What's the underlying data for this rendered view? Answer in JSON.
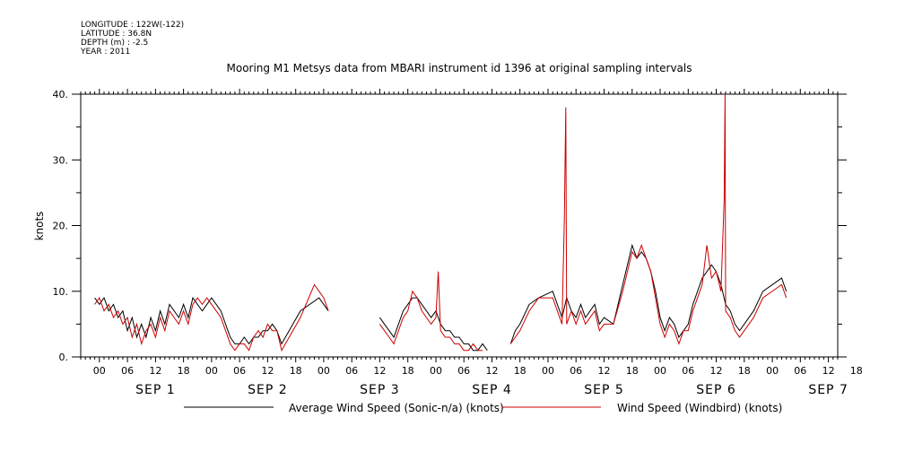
{
  "meta": {
    "lines": [
      "LONGITUDE : 122W(-122)",
      "LATITUDE : 36.8N",
      "DEPTH (m) : -2.5",
      "YEAR : 2011"
    ]
  },
  "chart_data": {
    "type": "line",
    "title": "Mooring M1 Metsys data from MBARI instrument id 1396 at original sampling intervals",
    "ylabel": "knots",
    "xlabel": "",
    "ylim": [
      0,
      40
    ],
    "xlim_hours": [
      -4,
      158
    ],
    "x_unit": "hours from 00 UTC SEP 1 2011",
    "y_ticks": [
      "0.",
      "10.",
      "20.",
      "30.",
      "40."
    ],
    "y_tick_values": [
      0,
      10,
      20,
      30,
      40
    ],
    "x_tick_labels": [
      "00",
      "06",
      "12",
      "18",
      "00",
      "06",
      "12",
      "18",
      "00",
      "06",
      "12",
      "18",
      "00",
      "06",
      "12",
      "18",
      "00",
      "06",
      "12",
      "18",
      "00",
      "06",
      "12",
      "18",
      "00",
      "06",
      "12",
      "18"
    ],
    "day_labels": [
      "SEP 1",
      "SEP 2",
      "SEP 3",
      "SEP 4",
      "SEP 5",
      "SEP 6",
      "SEP 7"
    ],
    "grid": false,
    "legend_position": "bottom",
    "series": [
      {
        "name": "Average Wind Speed (Sonic-n/a) (knots)",
        "color": "#000000",
        "segments": [
          [
            [
              -1,
              9
            ],
            [
              0,
              8
            ],
            [
              1,
              9
            ],
            [
              2,
              7
            ],
            [
              3,
              8
            ],
            [
              4,
              6
            ],
            [
              5,
              7
            ],
            [
              6,
              4
            ],
            [
              7,
              6
            ],
            [
              8,
              3
            ],
            [
              9,
              5
            ],
            [
              10,
              3
            ],
            [
              11,
              6
            ],
            [
              12,
              4
            ],
            [
              13,
              7
            ],
            [
              14,
              5
            ],
            [
              15,
              8
            ],
            [
              16,
              7
            ],
            [
              17,
              6
            ],
            [
              18,
              8
            ],
            [
              19,
              6
            ],
            [
              20,
              9
            ],
            [
              21,
              8
            ],
            [
              22,
              7
            ],
            [
              23,
              8
            ],
            [
              24,
              9
            ],
            [
              25,
              8
            ],
            [
              26,
              7
            ],
            [
              27,
              5
            ],
            [
              28,
              3
            ],
            [
              29,
              2
            ],
            [
              30,
              2
            ],
            [
              31,
              3
            ],
            [
              32,
              2
            ],
            [
              33,
              3
            ],
            [
              34,
              3
            ],
            [
              35,
              4
            ],
            [
              36,
              4
            ],
            [
              37,
              5
            ],
            [
              38,
              4
            ],
            [
              39,
              2
            ],
            [
              43,
              7
            ],
            [
              47,
              9
            ],
            [
              48,
              8
            ],
            [
              49,
              7
            ]
          ],
          [
            [
              60,
              6
            ],
            [
              61,
              5
            ],
            [
              62,
              4
            ],
            [
              63,
              3
            ],
            [
              64,
              5
            ],
            [
              65,
              7
            ],
            [
              66,
              8
            ],
            [
              67,
              9
            ],
            [
              68,
              9
            ],
            [
              69,
              8
            ],
            [
              70,
              7
            ],
            [
              71,
              6
            ],
            [
              72,
              7
            ],
            [
              73,
              5
            ],
            [
              74,
              4
            ],
            [
              75,
              4
            ],
            [
              76,
              3
            ],
            [
              77,
              3
            ],
            [
              78,
              2
            ],
            [
              79,
              2
            ],
            [
              80,
              1
            ],
            [
              81,
              1
            ],
            [
              82,
              2
            ],
            [
              83,
              1
            ]
          ],
          [
            [
              88,
              2
            ],
            [
              89,
              4
            ],
            [
              90,
              5
            ],
            [
              92,
              8
            ],
            [
              94,
              9
            ],
            [
              97,
              10
            ],
            [
              98,
              8
            ],
            [
              99,
              6
            ],
            [
              100,
              9
            ],
            [
              101,
              7
            ],
            [
              102,
              6
            ],
            [
              103,
              8
            ],
            [
              104,
              6
            ],
            [
              105,
              7
            ],
            [
              106,
              8
            ],
            [
              107,
              5
            ],
            [
              108,
              6
            ],
            [
              110,
              5
            ],
            [
              112,
              11
            ],
            [
              114,
              17
            ],
            [
              115,
              15
            ],
            [
              116,
              16
            ],
            [
              117,
              15
            ],
            [
              118,
              13
            ],
            [
              119,
              10
            ],
            [
              120,
              6
            ],
            [
              121,
              4
            ],
            [
              122,
              6
            ],
            [
              123,
              5
            ],
            [
              124,
              3
            ],
            [
              125,
              4
            ],
            [
              126,
              5
            ],
            [
              127,
              8
            ],
            [
              128,
              10
            ],
            [
              129,
              12
            ],
            [
              130,
              13
            ],
            [
              131,
              14
            ],
            [
              132,
              13
            ],
            [
              133,
              11
            ],
            [
              134,
              8
            ],
            [
              135,
              7
            ],
            [
              136,
              5
            ],
            [
              137,
              4
            ],
            [
              138,
              5
            ],
            [
              140,
              7
            ],
            [
              142,
              10
            ],
            [
              146,
              12
            ],
            [
              147,
              10
            ]
          ]
        ]
      },
      {
        "name": "Wind Speed (Windbird) (knots)",
        "color": "#cc0000",
        "segments": [
          [
            [
              -1,
              8
            ],
            [
              0,
              9
            ],
            [
              1,
              7
            ],
            [
              2,
              8
            ],
            [
              3,
              6
            ],
            [
              4,
              7
            ],
            [
              5,
              5
            ],
            [
              6,
              6
            ],
            [
              7,
              3
            ],
            [
              8,
              5
            ],
            [
              9,
              2
            ],
            [
              10,
              4
            ],
            [
              11,
              5
            ],
            [
              12,
              3
            ],
            [
              13,
              6
            ],
            [
              14,
              4
            ],
            [
              15,
              7
            ],
            [
              16,
              6
            ],
            [
              17,
              5
            ],
            [
              18,
              7
            ],
            [
              19,
              5
            ],
            [
              20,
              8
            ],
            [
              21,
              9
            ],
            [
              22,
              8
            ],
            [
              23,
              9
            ],
            [
              24,
              8
            ],
            [
              25,
              7
            ],
            [
              26,
              6
            ],
            [
              27,
              4
            ],
            [
              28,
              2
            ],
            [
              29,
              1
            ],
            [
              30,
              2
            ],
            [
              31,
              2
            ],
            [
              32,
              1
            ],
            [
              33,
              3
            ],
            [
              34,
              4
            ],
            [
              35,
              3
            ],
            [
              36,
              5
            ],
            [
              37,
              4
            ],
            [
              38,
              4
            ],
            [
              39,
              1
            ],
            [
              43,
              6
            ],
            [
              46,
              11
            ],
            [
              47,
              10
            ],
            [
              48,
              9
            ],
            [
              49,
              7
            ]
          ],
          [
            [
              60,
              5
            ],
            [
              61,
              4
            ],
            [
              62,
              3
            ],
            [
              63,
              2
            ],
            [
              64,
              4
            ],
            [
              65,
              6
            ],
            [
              66,
              7
            ],
            [
              67,
              10
            ],
            [
              68,
              9
            ],
            [
              69,
              7
            ],
            [
              70,
              6
            ],
            [
              71,
              5
            ],
            [
              72,
              6
            ],
            [
              72.5,
              13
            ],
            [
              73,
              4
            ],
            [
              74,
              3
            ],
            [
              75,
              3
            ],
            [
              76,
              2
            ],
            [
              77,
              2
            ],
            [
              78,
              1
            ],
            [
              79,
              1
            ],
            [
              80,
              2
            ],
            [
              81,
              1
            ],
            [
              82,
              1
            ]
          ],
          [
            [
              88,
              2
            ],
            [
              89,
              3
            ],
            [
              90,
              4
            ],
            [
              92,
              7
            ],
            [
              94,
              9
            ],
            [
              97,
              9
            ],
            [
              98,
              7
            ],
            [
              99,
              5
            ],
            [
              99.5,
              21
            ],
            [
              99.8,
              38
            ],
            [
              100,
              5
            ],
            [
              101,
              7
            ],
            [
              102,
              5
            ],
            [
              103,
              7
            ],
            [
              104,
              5
            ],
            [
              105,
              6
            ],
            [
              106,
              7
            ],
            [
              107,
              4
            ],
            [
              108,
              5
            ],
            [
              110,
              5
            ],
            [
              112,
              10
            ],
            [
              114,
              16
            ],
            [
              115,
              15
            ],
            [
              116,
              17
            ],
            [
              117,
              15
            ],
            [
              118,
              13
            ],
            [
              119,
              9
            ],
            [
              120,
              5
            ],
            [
              121,
              3
            ],
            [
              122,
              5
            ],
            [
              123,
              4
            ],
            [
              124,
              2
            ],
            [
              125,
              4
            ],
            [
              126,
              4
            ],
            [
              127,
              7
            ],
            [
              128,
              9
            ],
            [
              129,
              11
            ],
            [
              130,
              17
            ],
            [
              131,
              12
            ],
            [
              132,
              13
            ],
            [
              133,
              10
            ],
            [
              133.7,
              24
            ],
            [
              133.9,
              40
            ],
            [
              134,
              7
            ],
            [
              135,
              6
            ],
            [
              136,
              4
            ],
            [
              137,
              3
            ],
            [
              138,
              4
            ],
            [
              140,
              6
            ],
            [
              142,
              9
            ],
            [
              146,
              11
            ],
            [
              147,
              9
            ]
          ]
        ]
      }
    ]
  }
}
